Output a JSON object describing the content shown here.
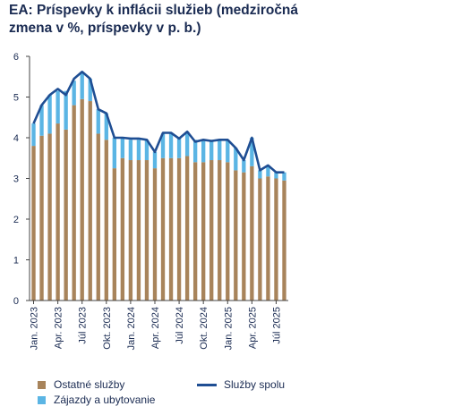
{
  "title": "EA: Príspevky k inflácii služieb (medziročná zmena v %, príspevky v p. b.)",
  "colors": {
    "ostatne": "#a8845b",
    "zajazdy": "#5bb5e4",
    "spolu": "#1f4e93",
    "axis": "#444444",
    "text": "#1a2b52"
  },
  "legend": {
    "ostatne": "Ostatné služby",
    "zajazdy": "Zájazdy a ubytovanie",
    "spolu": "Služby spolu"
  },
  "chart_data": {
    "type": "bar",
    "stacked": true,
    "title": "EA: Príspevky k inflácii služieb (medziročná zmena v %, príspevky v p. b.)",
    "ylim": [
      0,
      6
    ],
    "yticks": [
      0,
      1,
      2,
      3,
      4,
      5,
      6
    ],
    "categories": [
      "Jan. 2023",
      "Feb. 2023",
      "Mar. 2023",
      "Apr. 2023",
      "Máj 2023",
      "Jún 2023",
      "Júl 2023",
      "Aug. 2023",
      "Sep. 2023",
      "Okt. 2023",
      "Nov. 2023",
      "Dec. 2023",
      "Jan. 2024",
      "Feb. 2024",
      "Mar. 2024",
      "Apr. 2024",
      "Máj 2024",
      "Jún 2024",
      "Júl 2024",
      "Aug. 2024",
      "Sep. 2024",
      "Okt. 2024",
      "Nov. 2024",
      "Dec. 2024",
      "Jan. 2025",
      "Feb. 2025",
      "Mar. 2025",
      "Apr. 2025",
      "Máj 2025",
      "Jún 2025",
      "Júl 2025",
      "Aug. 2025"
    ],
    "xtick_labels": [
      {
        "index": 0,
        "label": "Jan. 2023"
      },
      {
        "index": 3,
        "label": "Apr. 2023"
      },
      {
        "index": 6,
        "label": "Júl 2023"
      },
      {
        "index": 9,
        "label": "Okt. 2023"
      },
      {
        "index": 12,
        "label": "Jan. 2024"
      },
      {
        "index": 15,
        "label": "Apr. 2024"
      },
      {
        "index": 18,
        "label": "Júl 2024"
      },
      {
        "index": 21,
        "label": "Okt. 2024"
      },
      {
        "index": 24,
        "label": "Jan. 2025"
      },
      {
        "index": 27,
        "label": "Apr. 2025"
      },
      {
        "index": 30,
        "label": "Júl 2025"
      }
    ],
    "series": [
      {
        "name": "Ostatné služby",
        "kind": "bar",
        "values": [
          3.8,
          4.05,
          4.1,
          4.35,
          4.2,
          4.8,
          4.95,
          4.9,
          4.1,
          3.95,
          3.25,
          3.5,
          3.45,
          3.45,
          3.45,
          3.25,
          3.5,
          3.5,
          3.5,
          3.55,
          3.4,
          3.4,
          3.45,
          3.45,
          3.4,
          3.2,
          3.15,
          3.3,
          3.0,
          3.05,
          3.0,
          2.95
        ]
      },
      {
        "name": "Zájazdy a ubytovanie",
        "kind": "bar",
        "values": [
          0.55,
          0.75,
          0.95,
          0.8,
          0.95,
          0.6,
          0.65,
          0.55,
          0.6,
          0.65,
          0.75,
          0.5,
          0.5,
          0.5,
          0.5,
          0.4,
          0.6,
          0.6,
          0.5,
          0.6,
          0.55,
          0.55,
          0.5,
          0.5,
          0.55,
          0.55,
          0.3,
          0.7,
          0.2,
          0.25,
          0.15,
          0.2
        ]
      },
      {
        "name": "Služby spolu",
        "kind": "line",
        "values": [
          4.35,
          4.8,
          5.05,
          5.2,
          5.05,
          5.45,
          5.62,
          5.45,
          4.7,
          4.6,
          4.0,
          4.0,
          3.98,
          3.98,
          3.95,
          3.65,
          4.12,
          4.12,
          3.98,
          4.15,
          3.9,
          3.95,
          3.92,
          3.95,
          3.95,
          3.75,
          3.45,
          4.0,
          3.2,
          3.32,
          3.15,
          3.15
        ]
      }
    ]
  }
}
